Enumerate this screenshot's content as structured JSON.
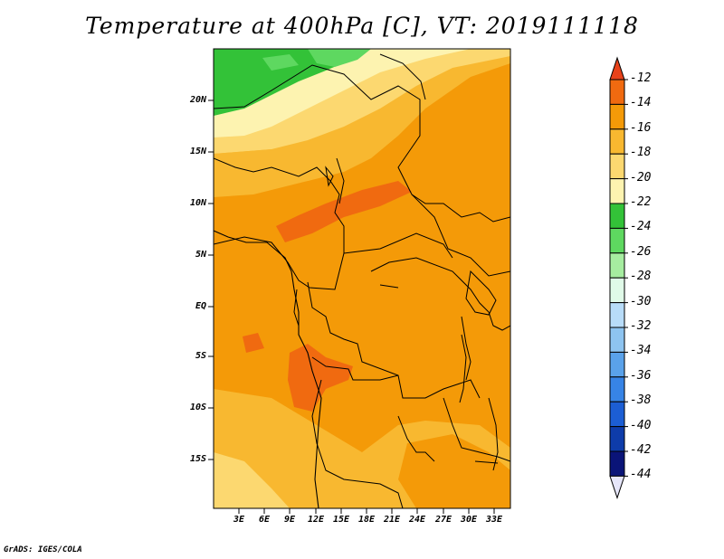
{
  "title": "Temperature at 400hPa [C], VT: 2019111118",
  "credit": "GrADS: IGES/COLA",
  "map": {
    "lat_labels": [
      "20N",
      "15N",
      "10N",
      "5N",
      "EQ",
      "5S",
      "10S",
      "15S"
    ],
    "lon_labels": [
      "3E",
      "6E",
      "9E",
      "12E",
      "15E",
      "18E",
      "21E",
      "24E",
      "27E",
      "30E",
      "33E"
    ]
  },
  "colorbar": {
    "labels": [
      "-12",
      "-14",
      "-16",
      "-18",
      "-20",
      "-22",
      "-24",
      "-26",
      "-28",
      "-30",
      "-32",
      "-34",
      "-36",
      "-38",
      "-40",
      "-42",
      "-44"
    ],
    "colors": [
      "#e8421a",
      "#f06a10",
      "#f49a08",
      "#f8b830",
      "#fcd870",
      "#fdf3b0",
      "#33c238",
      "#5ed860",
      "#a6eda0",
      "#e0fae8",
      "#b8dcf8",
      "#8ec4f0",
      "#5aa2ea",
      "#3784e6",
      "#1c5ed4",
      "#0e3caa",
      "#0a1478",
      "#e6e6fa"
    ]
  }
}
